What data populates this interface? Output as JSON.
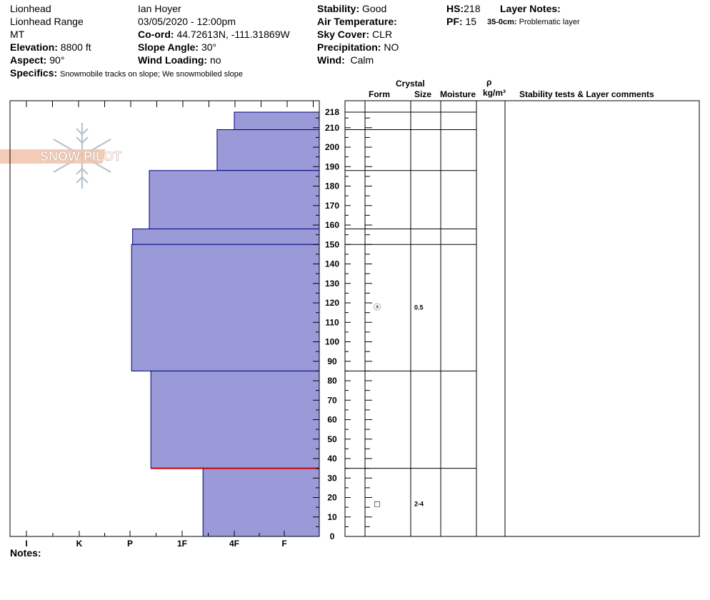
{
  "header": {
    "col1": [
      "Lionhead",
      "Lionhead Range",
      "MT"
    ],
    "elevation": {
      "label": "Elevation:",
      "value": "8800 ft"
    },
    "aspect": {
      "label": "Aspect:",
      "value": "90°"
    },
    "specifics": {
      "label": "Specifics:",
      "value": "Snowmobile tracks on slope; We snowmobiled slope"
    },
    "observer": "Ian Hoyer",
    "datetime": "03/05/2020 - 12:00pm",
    "coord": {
      "label": "Co-ord:",
      "value": "44.72613N, -111.31869W"
    },
    "slope": {
      "label": "Slope Angle:",
      "value": "30°"
    },
    "wind_loading": {
      "label": "Wind Loading:",
      "value": "no"
    },
    "stability": {
      "label": "Stability:",
      "value": "Good"
    },
    "air_temp": {
      "label": "Air Temperature:",
      "value": ""
    },
    "sky": {
      "label": "Sky Cover:",
      "value": "CLR"
    },
    "precip": {
      "label": "Precipitation:",
      "value": "NO"
    },
    "wind": {
      "label": "Wind:",
      "value": "Calm"
    },
    "hs": {
      "label": "HS:",
      "value": "218"
    },
    "pf": {
      "label": "PF:",
      "value": "15"
    },
    "layer_notes": {
      "label": "Layer Notes:",
      "range": "35-0cm:",
      "text": "Problematic layer"
    }
  },
  "logo_text": "SNOW PILOT",
  "columns": {
    "crystal": "Crystal",
    "form": "Form",
    "size": "Size",
    "moisture": "Moisture",
    "rho": "ρ",
    "density_unit": "kg/m³",
    "stability": "Stability tests & Layer comments"
  },
  "notes_label": "Notes:",
  "chart_data": {
    "type": "bar",
    "hardness_scale": [
      "I",
      "K",
      "P",
      "1F",
      "4F",
      "F"
    ],
    "y_ticks": [
      0,
      10,
      20,
      30,
      40,
      50,
      60,
      70,
      80,
      90,
      100,
      110,
      120,
      130,
      140,
      150,
      160,
      170,
      180,
      190,
      200,
      210,
      218
    ],
    "ylim": [
      0,
      218
    ],
    "layers": [
      {
        "top": 218,
        "bottom": 209,
        "hardness": 1.0
      },
      {
        "top": 209,
        "bottom": 188,
        "hardness": 1.33
      },
      {
        "top": 188,
        "bottom": 158,
        "hardness": 2.63
      },
      {
        "top": 158,
        "bottom": 150,
        "hardness": 2.95
      },
      {
        "top": 150,
        "bottom": 85,
        "hardness": 2.97
      },
      {
        "top": 85,
        "bottom": 35,
        "hardness": 2.6
      },
      {
        "top": 35,
        "bottom": 0,
        "hardness": 1.6
      }
    ],
    "layer_lines": [
      218,
      209,
      188,
      158,
      150,
      85,
      35
    ],
    "problem_layer": 35,
    "crystals": [
      {
        "depth": 118,
        "form": "ⓐ",
        "size": "0.5"
      },
      {
        "depth": 17,
        "form": "□",
        "size": "2-4"
      }
    ]
  }
}
